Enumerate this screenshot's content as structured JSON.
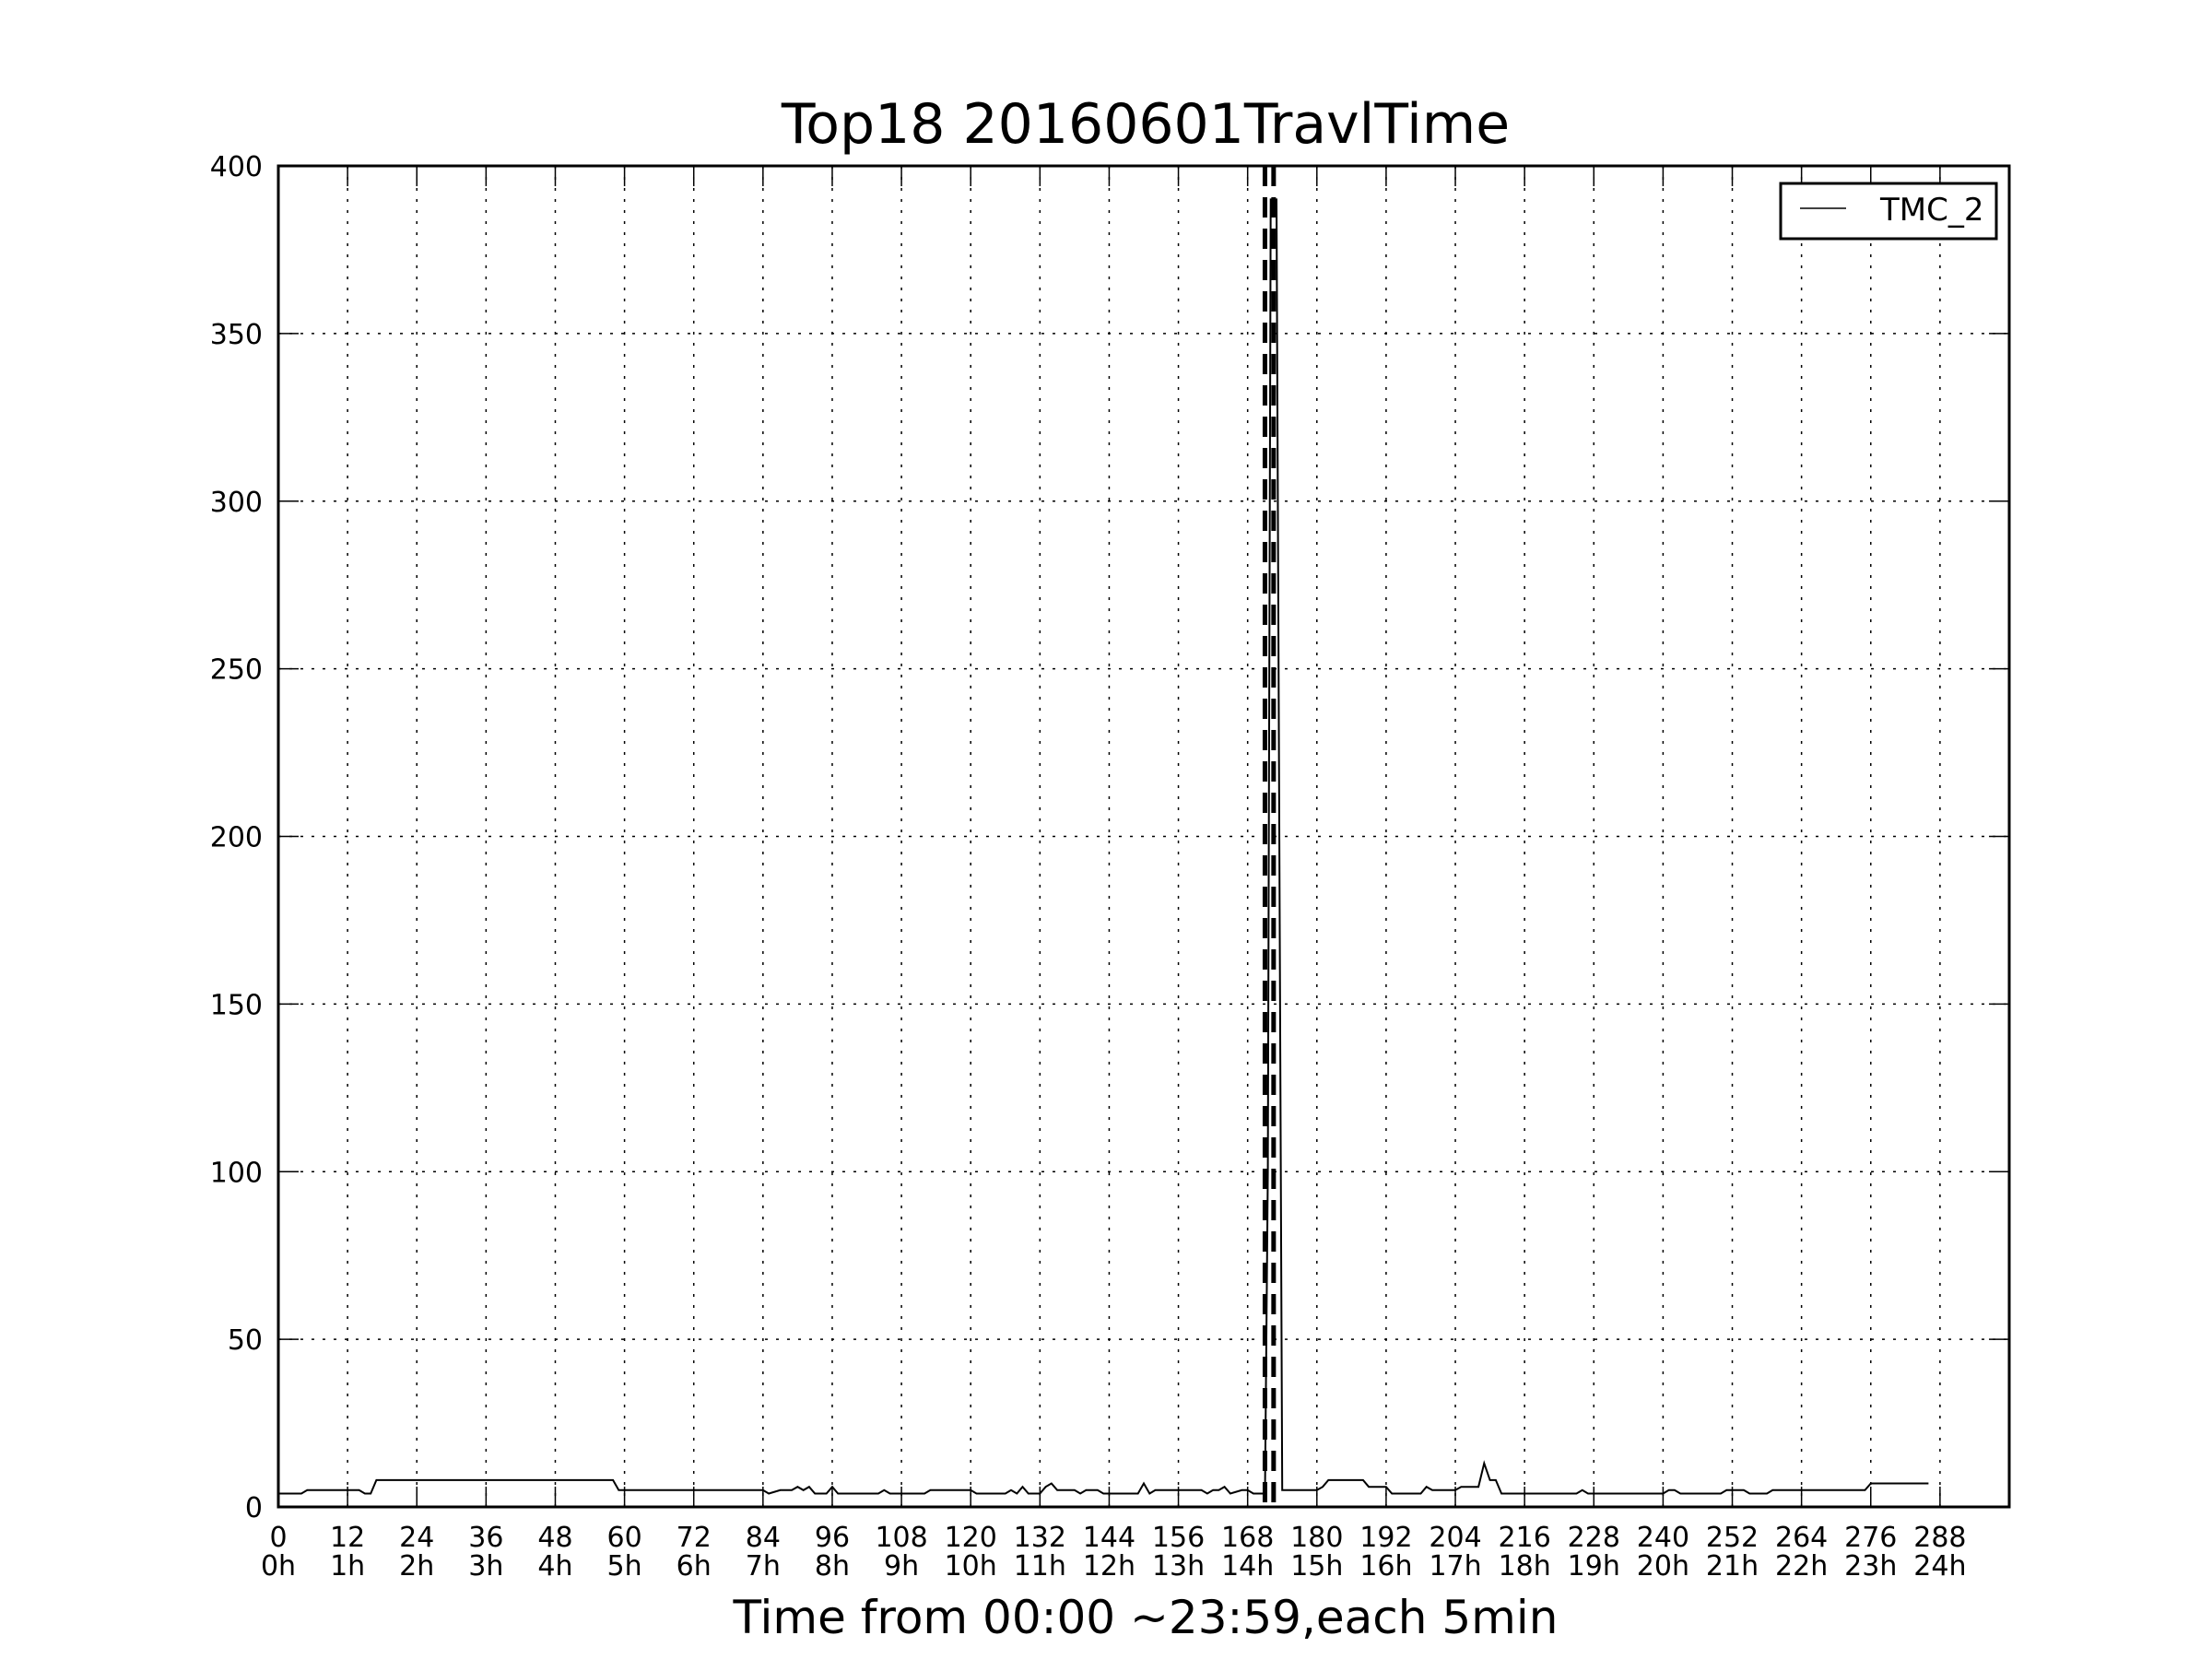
{
  "chart_data": {
    "type": "line",
    "title": "Top18 20160601TravlTime",
    "xlabel": "Time from 00:00 ~23:59,each 5min",
    "ylabel": "",
    "xlim": [
      0,
      300
    ],
    "ylim": [
      0,
      400
    ],
    "grid": true,
    "legend_placement": "top-right",
    "x_ticks": [
      {
        "value": 0,
        "top": "0",
        "bottom": "0h"
      },
      {
        "value": 12,
        "top": "12",
        "bottom": "1h"
      },
      {
        "value": 24,
        "top": "24",
        "bottom": "2h"
      },
      {
        "value": 36,
        "top": "36",
        "bottom": "3h"
      },
      {
        "value": 48,
        "top": "48",
        "bottom": "4h"
      },
      {
        "value": 60,
        "top": "60",
        "bottom": "5h"
      },
      {
        "value": 72,
        "top": "72",
        "bottom": "6h"
      },
      {
        "value": 84,
        "top": "84",
        "bottom": "7h"
      },
      {
        "value": 96,
        "top": "96",
        "bottom": "8h"
      },
      {
        "value": 108,
        "top": "108",
        "bottom": "9h"
      },
      {
        "value": 120,
        "top": "120",
        "bottom": "10h"
      },
      {
        "value": 132,
        "top": "132",
        "bottom": "11h"
      },
      {
        "value": 144,
        "top": "144",
        "bottom": "12h"
      },
      {
        "value": 156,
        "top": "156",
        "bottom": "13h"
      },
      {
        "value": 168,
        "top": "168",
        "bottom": "14h"
      },
      {
        "value": 180,
        "top": "180",
        "bottom": "15h"
      },
      {
        "value": 192,
        "top": "192",
        "bottom": "16h"
      },
      {
        "value": 204,
        "top": "204",
        "bottom": "17h"
      },
      {
        "value": 216,
        "top": "216",
        "bottom": "18h"
      },
      {
        "value": 228,
        "top": "228",
        "bottom": "19h"
      },
      {
        "value": 240,
        "top": "240",
        "bottom": "20h"
      },
      {
        "value": 252,
        "top": "252",
        "bottom": "21h"
      },
      {
        "value": 264,
        "top": "264",
        "bottom": "22h"
      },
      {
        "value": 276,
        "top": "276",
        "bottom": "23h"
      },
      {
        "value": 288,
        "top": "288",
        "bottom": "24h"
      }
    ],
    "y_ticks": [
      0,
      50,
      100,
      150,
      200,
      250,
      300,
      350,
      400
    ],
    "vlines": [
      {
        "x": 171,
        "style": "dashed"
      },
      {
        "x": 172.5,
        "style": "dashed"
      }
    ],
    "series": [
      {
        "name": "TMC_2",
        "color": "#000000",
        "points": [
          [
            0,
            4
          ],
          [
            4,
            4
          ],
          [
            5,
            5
          ],
          [
            14,
            5
          ],
          [
            15,
            4
          ],
          [
            16,
            4
          ],
          [
            17,
            8
          ],
          [
            58,
            8
          ],
          [
            59,
            5
          ],
          [
            84,
            5
          ],
          [
            85,
            4
          ],
          [
            87,
            5
          ],
          [
            89,
            5
          ],
          [
            90,
            6
          ],
          [
            91,
            5
          ],
          [
            92,
            6
          ],
          [
            93,
            4
          ],
          [
            95,
            4
          ],
          [
            96,
            6
          ],
          [
            97,
            4
          ],
          [
            104,
            4
          ],
          [
            105,
            5
          ],
          [
            106,
            4
          ],
          [
            112,
            4
          ],
          [
            113,
            5
          ],
          [
            120,
            5
          ],
          [
            121,
            4
          ],
          [
            126,
            4
          ],
          [
            127,
            5
          ],
          [
            128,
            4
          ],
          [
            129,
            6
          ],
          [
            130,
            4
          ],
          [
            132,
            4
          ],
          [
            133,
            6
          ],
          [
            134,
            7
          ],
          [
            135,
            5
          ],
          [
            138,
            5
          ],
          [
            139,
            4
          ],
          [
            140,
            5
          ],
          [
            142,
            5
          ],
          [
            143,
            4
          ],
          [
            149,
            4
          ],
          [
            150,
            7
          ],
          [
            151,
            4
          ],
          [
            152,
            5
          ],
          [
            160,
            5
          ],
          [
            161,
            4
          ],
          [
            162,
            5
          ],
          [
            163,
            5
          ],
          [
            164,
            6
          ],
          [
            165,
            4
          ],
          [
            167,
            5
          ],
          [
            168,
            5
          ],
          [
            169,
            4
          ],
          [
            171,
            4
          ],
          [
            171.5,
            100
          ],
          [
            172,
            390
          ],
          [
            173,
            390
          ],
          [
            174,
            5
          ],
          [
            180,
            5
          ],
          [
            181,
            6
          ],
          [
            182,
            8
          ],
          [
            188,
            8
          ],
          [
            189,
            6
          ],
          [
            192,
            6
          ],
          [
            193,
            4
          ],
          [
            198,
            4
          ],
          [
            199,
            6
          ],
          [
            200,
            5
          ],
          [
            204,
            5
          ],
          [
            205,
            6
          ],
          [
            208,
            6
          ],
          [
            209,
            13
          ],
          [
            210,
            8
          ],
          [
            211,
            8
          ],
          [
            212,
            4
          ],
          [
            225,
            4
          ],
          [
            226,
            5
          ],
          [
            227,
            4
          ],
          [
            240,
            4
          ],
          [
            241,
            5
          ],
          [
            242,
            5
          ],
          [
            243,
            4
          ],
          [
            250,
            4
          ],
          [
            251,
            5
          ],
          [
            254,
            5
          ],
          [
            255,
            4
          ],
          [
            258,
            4
          ],
          [
            259,
            5
          ],
          [
            275,
            5
          ],
          [
            276,
            7
          ],
          [
            286,
            7
          ]
        ]
      }
    ]
  }
}
